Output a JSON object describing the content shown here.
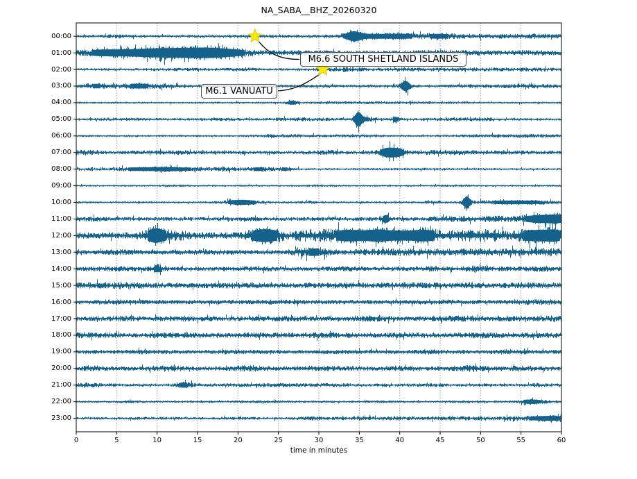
{
  "figure": {
    "trace_color": "#15628d",
    "grid_color": "#6e6e6e",
    "axis_color": "#000000",
    "star_color": "#ffe800",
    "star_edge_color": "#d4c100",
    "background": "#ffffff"
  },
  "chart_data": {
    "type": "line",
    "title": "NA_SABA__BHZ_20260320",
    "xlabel": "time in minutes",
    "x_range": [
      0,
      60
    ],
    "x_ticks": [
      0,
      5,
      10,
      15,
      20,
      25,
      30,
      35,
      40,
      45,
      50,
      55,
      60
    ],
    "grid": "vertical-dotted-every-5-min",
    "y_tick_labels": [
      "00:00",
      "01:00",
      "02:00",
      "03:00",
      "04:00",
      "05:00",
      "06:00",
      "07:00",
      "08:00",
      "09:00",
      "10:00",
      "11:00",
      "12:00",
      "13:00",
      "14:00",
      "15:00",
      "16:00",
      "17:00",
      "18:00",
      "19:00",
      "20:00",
      "21:00",
      "22:00",
      "23:00"
    ],
    "rows": [
      {
        "label": "00:00",
        "base": 2.0,
        "bursts": [
          [
            5,
            1.5,
            0.6
          ],
          [
            22,
            2,
            0.5
          ],
          [
            34.3,
            0.7,
            6
          ],
          [
            36.5,
            2.5,
            2.8
          ],
          [
            40.5,
            1.5,
            2.2
          ],
          [
            44.5,
            1.5,
            2.2
          ],
          [
            47.5,
            2,
            1.4
          ],
          [
            52,
            2,
            1.0
          ],
          [
            57,
            2.5,
            1.6
          ]
        ]
      },
      {
        "label": "01:00",
        "base": 2.6,
        "bursts": [
          [
            3,
            2,
            3
          ],
          [
            8,
            3,
            4
          ],
          [
            13,
            3,
            5.5
          ],
          [
            16.5,
            2,
            4
          ],
          [
            19.5,
            2,
            2.5
          ],
          [
            27,
            5,
            1.2
          ],
          [
            44,
            3,
            1.8
          ],
          [
            50,
            3,
            1.0
          ],
          [
            57,
            2,
            1.3
          ]
        ]
      },
      {
        "label": "02:00",
        "base": 1.8,
        "bursts": [
          [
            14,
            3,
            0.6
          ],
          [
            20.8,
            1,
            1.4
          ],
          [
            33,
            2,
            1.6
          ],
          [
            40,
            2,
            1.2
          ],
          [
            48,
            3,
            0.9
          ],
          [
            56,
            3,
            1.1
          ]
        ]
      },
      {
        "label": "03:00",
        "base": 2.0,
        "bursts": [
          [
            2.5,
            1.5,
            2.5
          ],
          [
            7.5,
            1.5,
            2.5
          ],
          [
            11,
            2,
            1.4
          ],
          [
            40.7,
            0.4,
            8
          ],
          [
            50,
            3,
            0.6
          ],
          [
            56,
            2,
            1.4
          ]
        ]
      },
      {
        "label": "04:00",
        "base": 1.4,
        "bursts": [
          [
            26.7,
            0.5,
            2.5
          ],
          [
            35,
            4,
            0.7
          ],
          [
            45,
            3,
            0.4
          ]
        ]
      },
      {
        "label": "05:00",
        "base": 1.7,
        "bursts": [
          [
            5,
            2,
            0.7
          ],
          [
            18,
            2,
            0.7
          ],
          [
            28,
            3,
            1.0
          ],
          [
            34.9,
            0.35,
            12
          ],
          [
            36.2,
            1,
            2
          ],
          [
            39.5,
            0.4,
            3
          ],
          [
            49,
            3,
            1.2
          ]
        ]
      },
      {
        "label": "06:00",
        "base": 1.4,
        "bursts": [
          [
            26,
            3,
            1.3
          ],
          [
            35,
            2,
            1.0
          ],
          [
            52,
            4,
            1.0
          ],
          [
            57,
            2,
            1.0
          ]
        ]
      },
      {
        "label": "07:00",
        "base": 2.4,
        "bursts": [
          [
            1,
            1,
            2
          ],
          [
            12,
            2,
            1
          ],
          [
            31,
            1,
            1.5
          ],
          [
            38.6,
            0.8,
            7
          ],
          [
            39.9,
            0.6,
            4
          ],
          [
            45,
            2,
            1.5
          ],
          [
            52,
            3,
            0.8
          ]
        ]
      },
      {
        "label": "08:00",
        "base": 1.5,
        "bursts": [
          [
            2,
            2,
            1
          ],
          [
            7,
            1.5,
            1.8
          ],
          [
            10.5,
            1.5,
            2.2
          ],
          [
            14,
            2,
            1.6
          ],
          [
            19,
            2,
            1.6
          ],
          [
            23,
            1.5,
            1.6
          ],
          [
            26,
            1,
            1.6
          ],
          [
            44,
            3,
            0.4
          ]
        ]
      },
      {
        "label": "09:00",
        "base": 1.3,
        "bursts": [
          [
            12,
            1,
            0.7
          ],
          [
            30,
            1.5,
            0.5
          ],
          [
            47,
            1,
            0.6
          ]
        ]
      },
      {
        "label": "10:00",
        "base": 1.5,
        "bursts": [
          [
            20.5,
            1.5,
            3.5
          ],
          [
            29,
            1,
            0.8
          ],
          [
            44,
            1,
            1.0
          ],
          [
            48.3,
            0.3,
            10
          ],
          [
            52,
            3,
            1.5
          ],
          [
            57,
            3,
            1.5
          ]
        ]
      },
      {
        "label": "11:00",
        "base": 2.6,
        "bursts": [
          [
            2,
            2,
            1
          ],
          [
            21,
            1,
            1
          ],
          [
            38.3,
            0.4,
            5
          ],
          [
            46,
            2,
            1.5
          ],
          [
            52,
            3,
            2
          ],
          [
            57.5,
            1.5,
            5
          ],
          [
            59.5,
            0.8,
            4
          ]
        ]
      },
      {
        "label": "12:00",
        "base": 4.5,
        "bursts": [
          [
            9.7,
            0.8,
            8
          ],
          [
            11.5,
            1.5,
            4
          ],
          [
            22.8,
            1.2,
            7
          ],
          [
            24.5,
            1,
            4
          ],
          [
            28,
            1,
            3
          ],
          [
            31,
            1.5,
            4.5
          ],
          [
            33.5,
            1,
            4
          ],
          [
            35.5,
            1.5,
            5
          ],
          [
            37.5,
            1,
            4.5
          ],
          [
            40,
            1.5,
            5
          ],
          [
            42.5,
            1,
            4.5
          ],
          [
            44,
            1,
            4
          ],
          [
            47,
            1.5,
            3
          ],
          [
            50,
            1.5,
            3.5
          ],
          [
            52,
            1,
            3
          ],
          [
            55.5,
            1,
            5
          ],
          [
            57.5,
            1,
            6
          ],
          [
            59.3,
            0.8,
            6.5
          ]
        ]
      },
      {
        "label": "13:00",
        "base": 3.2,
        "bursts": [
          [
            6,
            2,
            0.8
          ],
          [
            17,
            2,
            0.8
          ],
          [
            28.5,
            1.5,
            3
          ],
          [
            30,
            1,
            2
          ],
          [
            36,
            2,
            1
          ],
          [
            40,
            2,
            1.5
          ],
          [
            44,
            2,
            1.5
          ],
          [
            48,
            2,
            1.5
          ],
          [
            52,
            2,
            1.5
          ],
          [
            56,
            2,
            1.5
          ],
          [
            59,
            1,
            2
          ]
        ]
      },
      {
        "label": "14:00",
        "base": 3.0,
        "bursts": [
          [
            5,
            2,
            0.8
          ],
          [
            10,
            0.6,
            4
          ],
          [
            22,
            2,
            0.8
          ],
          [
            33,
            2,
            0.8
          ],
          [
            44,
            2,
            0.8
          ],
          [
            50,
            2,
            1.0
          ],
          [
            58,
            2,
            1.0
          ]
        ]
      },
      {
        "label": "15:00",
        "base": 3.6,
        "bursts": [
          [
            2,
            2,
            1
          ],
          [
            6,
            2,
            1.2
          ],
          [
            20,
            2,
            0.8
          ],
          [
            33,
            1.5,
            1.2
          ],
          [
            41,
            1.5,
            1.0
          ],
          [
            47,
            2,
            0.8
          ],
          [
            55,
            2,
            0.8
          ]
        ]
      },
      {
        "label": "16:00",
        "base": 3.0,
        "bursts": [
          [
            4,
            2,
            0.6
          ],
          [
            25,
            2,
            0.6
          ],
          [
            45,
            2,
            0.8
          ],
          [
            57,
            2,
            1.0
          ]
        ]
      },
      {
        "label": "17:00",
        "base": 3.3,
        "bursts": [
          [
            6,
            2,
            0.8
          ],
          [
            14,
            2,
            0.8
          ],
          [
            25,
            2,
            0.6
          ],
          [
            36,
            2,
            1.2
          ],
          [
            47,
            1.5,
            1.4
          ],
          [
            53,
            2,
            0.8
          ],
          [
            59,
            1,
            1.0
          ]
        ]
      },
      {
        "label": "18:00",
        "base": 3.3,
        "bursts": [
          [
            1.5,
            1.5,
            1.5
          ],
          [
            12,
            2,
            0.8
          ],
          [
            22,
            2,
            0.8
          ],
          [
            31,
            2,
            1.2
          ],
          [
            41,
            2,
            0.8
          ],
          [
            50,
            2,
            0.8
          ],
          [
            57,
            2,
            1.0
          ]
        ]
      },
      {
        "label": "19:00",
        "base": 2.7,
        "bursts": [
          [
            8,
            2,
            0.6
          ],
          [
            20,
            2,
            0.6
          ],
          [
            33,
            2,
            0.6
          ],
          [
            44,
            2,
            0.8
          ],
          [
            54,
            2,
            0.8
          ]
        ]
      },
      {
        "label": "20:00",
        "base": 3.0,
        "bursts": [
          [
            2,
            1,
            1.5
          ],
          [
            11,
            1.5,
            1.5
          ],
          [
            21.5,
            1.5,
            1.5
          ],
          [
            30,
            2,
            0.8
          ],
          [
            40,
            2,
            0.8
          ],
          [
            48.5,
            1.5,
            1.8
          ],
          [
            55,
            2,
            1.0
          ]
        ]
      },
      {
        "label": "21:00",
        "base": 2.2,
        "bursts": [
          [
            1.5,
            1.5,
            1.2
          ],
          [
            13.3,
            0.8,
            3
          ],
          [
            24,
            3,
            0.8
          ],
          [
            31,
            2,
            0.6
          ],
          [
            45,
            2,
            0.4
          ],
          [
            57,
            1,
            0.8
          ]
        ]
      },
      {
        "label": "22:00",
        "base": 1.5,
        "bursts": [
          [
            6.5,
            1,
            1.0
          ],
          [
            16,
            2,
            0.4
          ],
          [
            24,
            3,
            0.5
          ],
          [
            38,
            2,
            0.4
          ],
          [
            48,
            2,
            0.4
          ],
          [
            56.3,
            1,
            3
          ],
          [
            59,
            1,
            0.6
          ]
        ]
      },
      {
        "label": "23:00",
        "base": 1.8,
        "bursts": [
          [
            10,
            2,
            0.4
          ],
          [
            20,
            2,
            0.4
          ],
          [
            29,
            1,
            1.0
          ],
          [
            34,
            3,
            0.8
          ],
          [
            40,
            3,
            0.8
          ],
          [
            46,
            3,
            0.8
          ],
          [
            51,
            3,
            1.0
          ],
          [
            56,
            2,
            1.5
          ],
          [
            59,
            1.5,
            2.5
          ]
        ]
      }
    ],
    "events": [
      {
        "label": "M6.6 SOUTH SHETLAND ISLANDS",
        "row": "00:00",
        "minute": 22.1
      },
      {
        "label": "M6.1 VANUATU",
        "row": "02:00",
        "minute": 30.5
      }
    ]
  }
}
